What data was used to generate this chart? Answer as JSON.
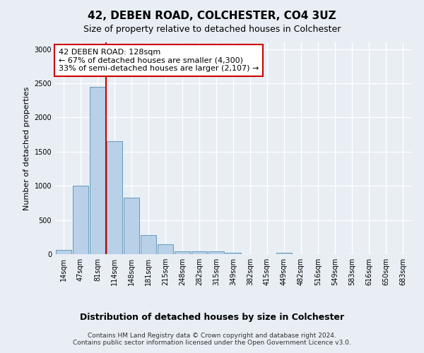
{
  "title1": "42, DEBEN ROAD, COLCHESTER, CO4 3UZ",
  "title2": "Size of property relative to detached houses in Colchester",
  "xlabel": "Distribution of detached houses by size in Colchester",
  "ylabel": "Number of detached properties",
  "bar_labels": [
    "14sqm",
    "47sqm",
    "81sqm",
    "114sqm",
    "148sqm",
    "181sqm",
    "215sqm",
    "248sqm",
    "282sqm",
    "315sqm",
    "349sqm",
    "382sqm",
    "415sqm",
    "449sqm",
    "482sqm",
    "516sqm",
    "549sqm",
    "583sqm",
    "616sqm",
    "650sqm",
    "683sqm"
  ],
  "bar_values": [
    60,
    1000,
    2450,
    1650,
    830,
    275,
    140,
    40,
    40,
    40,
    25,
    0,
    0,
    20,
    0,
    0,
    0,
    0,
    0,
    0,
    0
  ],
  "bar_color": "#b8d0e8",
  "bar_edge_color": "#6699bb",
  "annotation_title": "42 DEBEN ROAD: 128sqm",
  "annotation_line1": "← 67% of detached houses are smaller (4,300)",
  "annotation_line2": "33% of semi-detached houses are larger (2,107) →",
  "annotation_box_color": "#ffffff",
  "annotation_box_edge": "#cc0000",
  "line_color": "#cc0000",
  "ylim": [
    0,
    3100
  ],
  "yticks": [
    0,
    500,
    1000,
    1500,
    2000,
    2500,
    3000
  ],
  "footnote1": "Contains HM Land Registry data © Crown copyright and database right 2024.",
  "footnote2": "Contains public sector information licensed under the Open Government Licence v3.0.",
  "bg_color": "#e8eef4",
  "grid_color": "#ffffff",
  "title1_fontsize": 11,
  "title2_fontsize": 9,
  "ylabel_fontsize": 8,
  "xlabel_fontsize": 9,
  "tick_fontsize": 7,
  "annot_fontsize": 8,
  "footnote_fontsize": 6.5
}
